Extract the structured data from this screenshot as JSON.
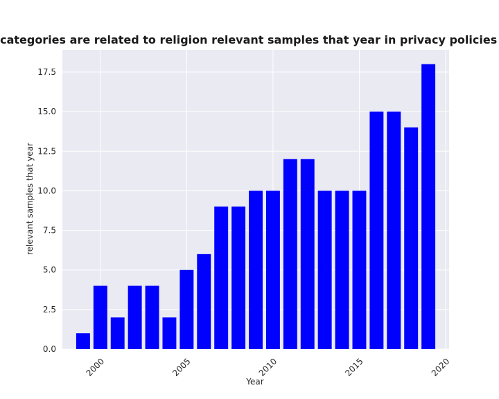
{
  "chart_data": {
    "type": "bar",
    "title": "when categories are related to religion relevant samples that year in privacy policies by Year",
    "xlabel": "Year",
    "ylabel": "relevant samples that year",
    "x": [
      1999,
      2000,
      2001,
      2002,
      2003,
      2004,
      2005,
      2006,
      2007,
      2008,
      2009,
      2010,
      2011,
      2012,
      2013,
      2014,
      2015,
      2016,
      2017,
      2018,
      2019
    ],
    "values": [
      1,
      4,
      2,
      4,
      4,
      2,
      5,
      6,
      9,
      9,
      10,
      10,
      12,
      12,
      10,
      10,
      10,
      15,
      15,
      14,
      18
    ],
    "xlim": [
      1997.8,
      2020.2
    ],
    "ylim": [
      0,
      18.9
    ],
    "xticks": [
      2000,
      2005,
      2010,
      2015,
      2020
    ],
    "xtick_labels": [
      "2000",
      "2005",
      "2010",
      "2015",
      "2020"
    ],
    "yticks": [
      0,
      2.5,
      5,
      7.5,
      10,
      12.5,
      15,
      17.5
    ],
    "ytick_labels": [
      "0.0",
      "2.5",
      "5.0",
      "7.5",
      "10.0",
      "12.5",
      "15.0",
      "17.5"
    ],
    "grid": true,
    "colors": {
      "bar": "#0000ff",
      "plot_background": "#eaeaf2",
      "grid": "#ffffff"
    }
  }
}
